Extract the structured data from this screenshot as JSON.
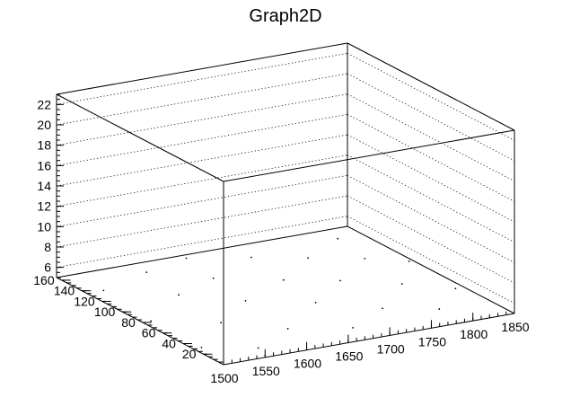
{
  "chart_data": {
    "type": "scatter",
    "title": "Graph2D",
    "xlabel": "",
    "ylabel": "",
    "zlabel": "",
    "xlim": [
      1500,
      1850
    ],
    "ylim": [
      0,
      165
    ],
    "zlim": [
      5,
      23
    ],
    "x_ticks": [
      1500,
      1550,
      1600,
      1650,
      1700,
      1750,
      1800,
      1850
    ],
    "y_ticks": [
      20,
      40,
      60,
      80,
      100,
      120,
      140,
      160
    ],
    "z_ticks": [
      6,
      8,
      10,
      12,
      14,
      16,
      18,
      20,
      22
    ],
    "z_grid": true,
    "points": [
      {
        "x": 1510,
        "y": 30,
        "z": 5
      },
      {
        "x": 1510,
        "y": 80,
        "z": 5
      },
      {
        "x": 1520,
        "y": 135,
        "z": 5
      },
      {
        "x": 1560,
        "y": 15,
        "z": 5
      },
      {
        "x": 1570,
        "y": 60,
        "z": 5
      },
      {
        "x": 1580,
        "y": 110,
        "z": 5
      },
      {
        "x": 1590,
        "y": 150,
        "z": 5
      },
      {
        "x": 1620,
        "y": 35,
        "z": 5
      },
      {
        "x": 1630,
        "y": 85,
        "z": 5
      },
      {
        "x": 1640,
        "y": 125,
        "z": 5
      },
      {
        "x": 1650,
        "y": 160,
        "z": 5
      },
      {
        "x": 1680,
        "y": 20,
        "z": 5
      },
      {
        "x": 1690,
        "y": 65,
        "z": 5
      },
      {
        "x": 1700,
        "y": 105,
        "z": 5
      },
      {
        "x": 1710,
        "y": 145,
        "z": 5
      },
      {
        "x": 1740,
        "y": 40,
        "z": 5
      },
      {
        "x": 1750,
        "y": 90,
        "z": 5
      },
      {
        "x": 1760,
        "y": 130,
        "z": 5
      },
      {
        "x": 1790,
        "y": 25,
        "z": 5
      },
      {
        "x": 1800,
        "y": 70,
        "z": 5
      },
      {
        "x": 1810,
        "y": 115,
        "z": 5
      },
      {
        "x": 1820,
        "y": 150,
        "z": 5
      },
      {
        "x": 1840,
        "y": 50,
        "z": 5
      },
      {
        "x": 1845,
        "y": 100,
        "z": 5
      }
    ]
  }
}
